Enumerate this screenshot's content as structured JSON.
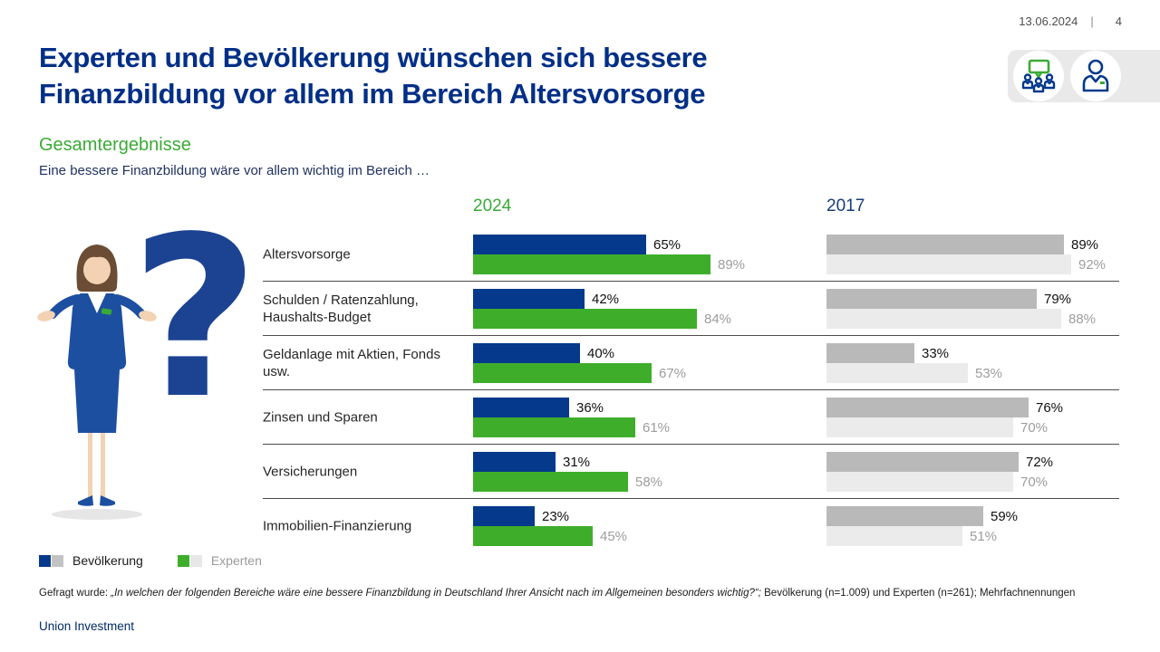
{
  "meta": {
    "date": "13.06.2024",
    "separator": "|",
    "page": "4"
  },
  "header": {
    "title_line1": "Experten und Bevölkerung wünschen sich bessere",
    "title_line2": "Finanzbildung vor allem im Bereich Altersvorsorge",
    "subtitle": "Gesamtergebnisse",
    "lead": "Eine bessere Finanzbildung wäre vor allem wichtig im Bereich …"
  },
  "icons": [
    "speech-bubble-group-icon",
    "person-icon"
  ],
  "colors": {
    "headline_blue": "#002f87",
    "accent_green": "#3aaa35",
    "year2017_blue": "#173d7a",
    "bar_blue": "#04398c",
    "bar_green": "#3eae2a",
    "bar_gray_dark": "#b9b9b9",
    "bar_gray_light": "#ebebeb",
    "icon_box_gray": "#e9e9e9"
  },
  "chart_data": {
    "type": "bar",
    "orientation": "horizontal",
    "title": "Eine bessere Finanzbildung wäre vor allem wichtig im Bereich …",
    "value_suffix": "%",
    "xlim": [
      0,
      100
    ],
    "grid": false,
    "categories": [
      "Altersvorsorge",
      "Schulden / Ratenzahlung, Haushalts-Budget",
      "Geldanlage mit Aktien, Fonds usw.",
      "Zinsen und Sparen",
      "Versicherungen",
      "Immobilien-Finanzierung"
    ],
    "columns": [
      {
        "year": "2024",
        "series": [
          {
            "name": "Bevölkerung",
            "color": "#04398c",
            "values": [
              65,
              42,
              40,
              36,
              31,
              23
            ]
          },
          {
            "name": "Experten",
            "color": "#3eae2a",
            "values": [
              89,
              84,
              67,
              61,
              58,
              45
            ]
          }
        ]
      },
      {
        "year": "2017",
        "series": [
          {
            "name": "Bevölkerung",
            "color": "#b9b9b9",
            "values": [
              89,
              79,
              33,
              76,
              72,
              59
            ]
          },
          {
            "name": "Experten",
            "color": "#ebebeb",
            "values": [
              92,
              88,
              53,
              70,
              70,
              51
            ]
          }
        ]
      }
    ]
  },
  "legend": {
    "items": [
      {
        "label": "Bevölkerung",
        "swatches": [
          "#04398c",
          "#c3c3c3"
        ],
        "muted": false
      },
      {
        "label": "Experten",
        "swatches": [
          "#3eae2a",
          "#e7e7e7"
        ],
        "muted": true
      }
    ]
  },
  "footnote": {
    "prefix": "Gefragt wurde: ",
    "quote": "„In welchen der folgenden Bereiche wäre eine bessere Finanzbildung in Deutschland Ihrer Ansicht nach im Allgemeinen besonders wichtig?“;",
    "suffix": " Bevölkerung (n=1.009) und Experten (n=261); Mehrfachnennungen"
  },
  "brand": "Union Investment"
}
